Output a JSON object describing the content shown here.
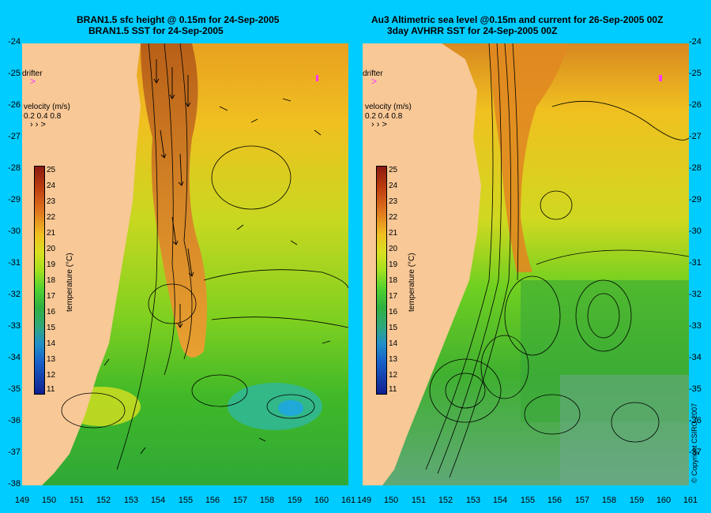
{
  "titles": {
    "left_line1": "BRAN1.5 sfc height @ 0.15m for 24-Sep-2005",
    "left_line2": "BRAN1.5 SST for 24-Sep-2005",
    "right_line1": "Au3 Altimetric sea level  @0.15m and current for 26-Sep-2005 00Z",
    "right_line2": "3day AVHRR SST for 24-Sep-2005 00Z"
  },
  "lat_labels": [
    "-24",
    "-25",
    "-26",
    "-27",
    "-28",
    "-29",
    "-30",
    "-31",
    "-32",
    "-33",
    "-34",
    "-35",
    "-36",
    "-37",
    "-38"
  ],
  "lon_labels_left": [
    "149",
    "150",
    "151",
    "152",
    "153",
    "154",
    "155",
    "156",
    "157",
    "158",
    "159",
    "160",
    "161"
  ],
  "lon_labels_right": [
    "149",
    "150",
    "151",
    "152",
    "153",
    "154",
    "155",
    "156",
    "157",
    "158",
    "159",
    "160",
    "161"
  ],
  "legend": {
    "drifter": "drifter",
    "velocity_title": "velocity (m/s)",
    "velocity_values": "0.2 0.4 0.8",
    "colorbar_title": "temperature (°C)",
    "colorbar_ticks": [
      "25",
      "24",
      "23",
      "22",
      "21",
      "20",
      "19",
      "18",
      "17",
      "16",
      "15",
      "14",
      "13",
      "12",
      "11"
    ]
  },
  "copyright": "© Copyright CSIRO 2007",
  "colors": {
    "background": "#00ccff",
    "land": "#f8c896",
    "drifter_marker": "#ff33ff"
  }
}
